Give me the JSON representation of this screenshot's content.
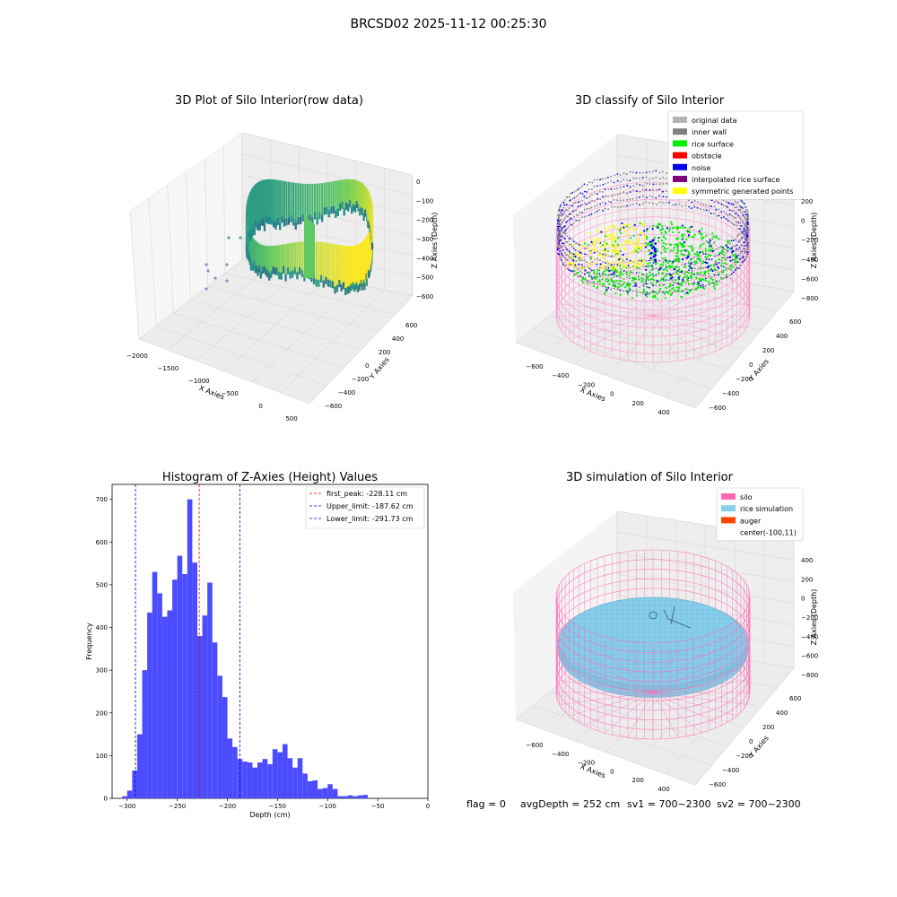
{
  "figure": {
    "title": "BRCSD02 2025-11-12 00:25:30",
    "footer": {
      "flag": "flag = 0",
      "avg_depth": "avgDepth = 252 cm",
      "sv1": "sv1 = 700~2300",
      "sv2": "sv2 = 700~2300"
    }
  },
  "chart_data": [
    {
      "type": "scatter",
      "projection": "3d",
      "title": "3D Plot of Silo Interior(row data)",
      "xlabel": "X Axies",
      "ylabel": "Y Axies",
      "zlabel": "Z Axies (Depth)",
      "x_ticks": [
        "−2000",
        "−1500",
        "−1000",
        "−500",
        "0",
        "500"
      ],
      "y_ticks": [
        "−600",
        "−400",
        "−200",
        "0",
        "200",
        "400",
        "600"
      ],
      "z_ticks": [
        "0",
        "−100",
        "−200",
        "−300",
        "−400",
        "−500",
        "−600"
      ],
      "colormap": "viridis"
    },
    {
      "type": "scatter",
      "projection": "3d",
      "title": "3D classify of Silo Interior",
      "xlabel": "X Axies",
      "ylabel": "Y Axies",
      "zlabel": "Z Axies (Depth)",
      "x_ticks": [
        "−600",
        "−400",
        "−200",
        "0",
        "200",
        "400"
      ],
      "y_ticks": [
        "−600",
        "−400",
        "−200",
        "0",
        "200",
        "400",
        "600"
      ],
      "z_ticks": [
        "200",
        "0",
        "−200",
        "−400",
        "−600",
        "−800"
      ],
      "legend": [
        {
          "label": "original data",
          "color": "#b3b3b3"
        },
        {
          "label": "inner wall",
          "color": "#808080"
        },
        {
          "label": "rice surface",
          "color": "#00ee00"
        },
        {
          "label": "obstacle",
          "color": "#ff0000"
        },
        {
          "label": "noise",
          "color": "#0000ee"
        },
        {
          "label": "interpolated rice surface",
          "color": "#800080"
        },
        {
          "label": "symmetric generated points",
          "color": "#ffff00"
        }
      ],
      "legend_loc": "upper right"
    },
    {
      "type": "bar",
      "title": "Histogram of Z-Axies (Height) Values",
      "xlabel": "Depth (cm)",
      "ylabel": "Frequency",
      "xlim": [
        -315,
        0
      ],
      "ylim": [
        0,
        735
      ],
      "x_ticks": [
        -300,
        -250,
        -200,
        -150,
        -100,
        -50,
        0
      ],
      "y_ticks": [
        0,
        100,
        200,
        300,
        400,
        500,
        600,
        700
      ],
      "bin_width": 5,
      "bin_start": -305,
      "values": [
        5,
        18,
        65,
        150,
        300,
        435,
        530,
        480,
        425,
        440,
        512,
        568,
        525,
        700,
        552,
        380,
        428,
        505,
        365,
        287,
        237,
        140,
        120,
        92,
        86,
        84,
        72,
        84,
        92,
        80,
        115,
        108,
        127,
        94,
        72,
        94,
        58,
        40,
        42,
        22,
        24,
        33,
        22,
        5,
        5,
        7,
        5,
        7,
        8
      ],
      "bar_color": "#4c4cff",
      "vlines": [
        {
          "label": "first_peak: -228.11 cm",
          "x": -228.11,
          "color": "#ff0000"
        },
        {
          "label": "Upper_limit: -187.62 cm",
          "x": -187.62,
          "color": "#0000cc"
        },
        {
          "label": "Lower_limit: -291.73 cm",
          "x": -291.73,
          "color": "#0000cc"
        }
      ],
      "legend_loc": "upper right"
    },
    {
      "type": "scatter",
      "projection": "3d",
      "title": "3D simulation of Silo Interior",
      "xlabel": "X Axies",
      "ylabel": "Y Axies",
      "zlabel": "Z Axies (Depth)",
      "x_ticks": [
        "−600",
        "−400",
        "−200",
        "0",
        "200",
        "400"
      ],
      "y_ticks": [
        "−600",
        "−400",
        "−200",
        "0",
        "200",
        "400",
        "600"
      ],
      "z_ticks": [
        "400",
        "200",
        "0",
        "−200",
        "−400",
        "−600",
        "−800"
      ],
      "legend": [
        {
          "label": "silo",
          "color": "#ff69b4"
        },
        {
          "label": "rice simulation",
          "color": "#87ceeb"
        },
        {
          "label": "auger",
          "color": "#ff4500"
        },
        {
          "label": "center(-100,11)",
          "color": ""
        }
      ],
      "legend_loc": "upper right"
    }
  ]
}
